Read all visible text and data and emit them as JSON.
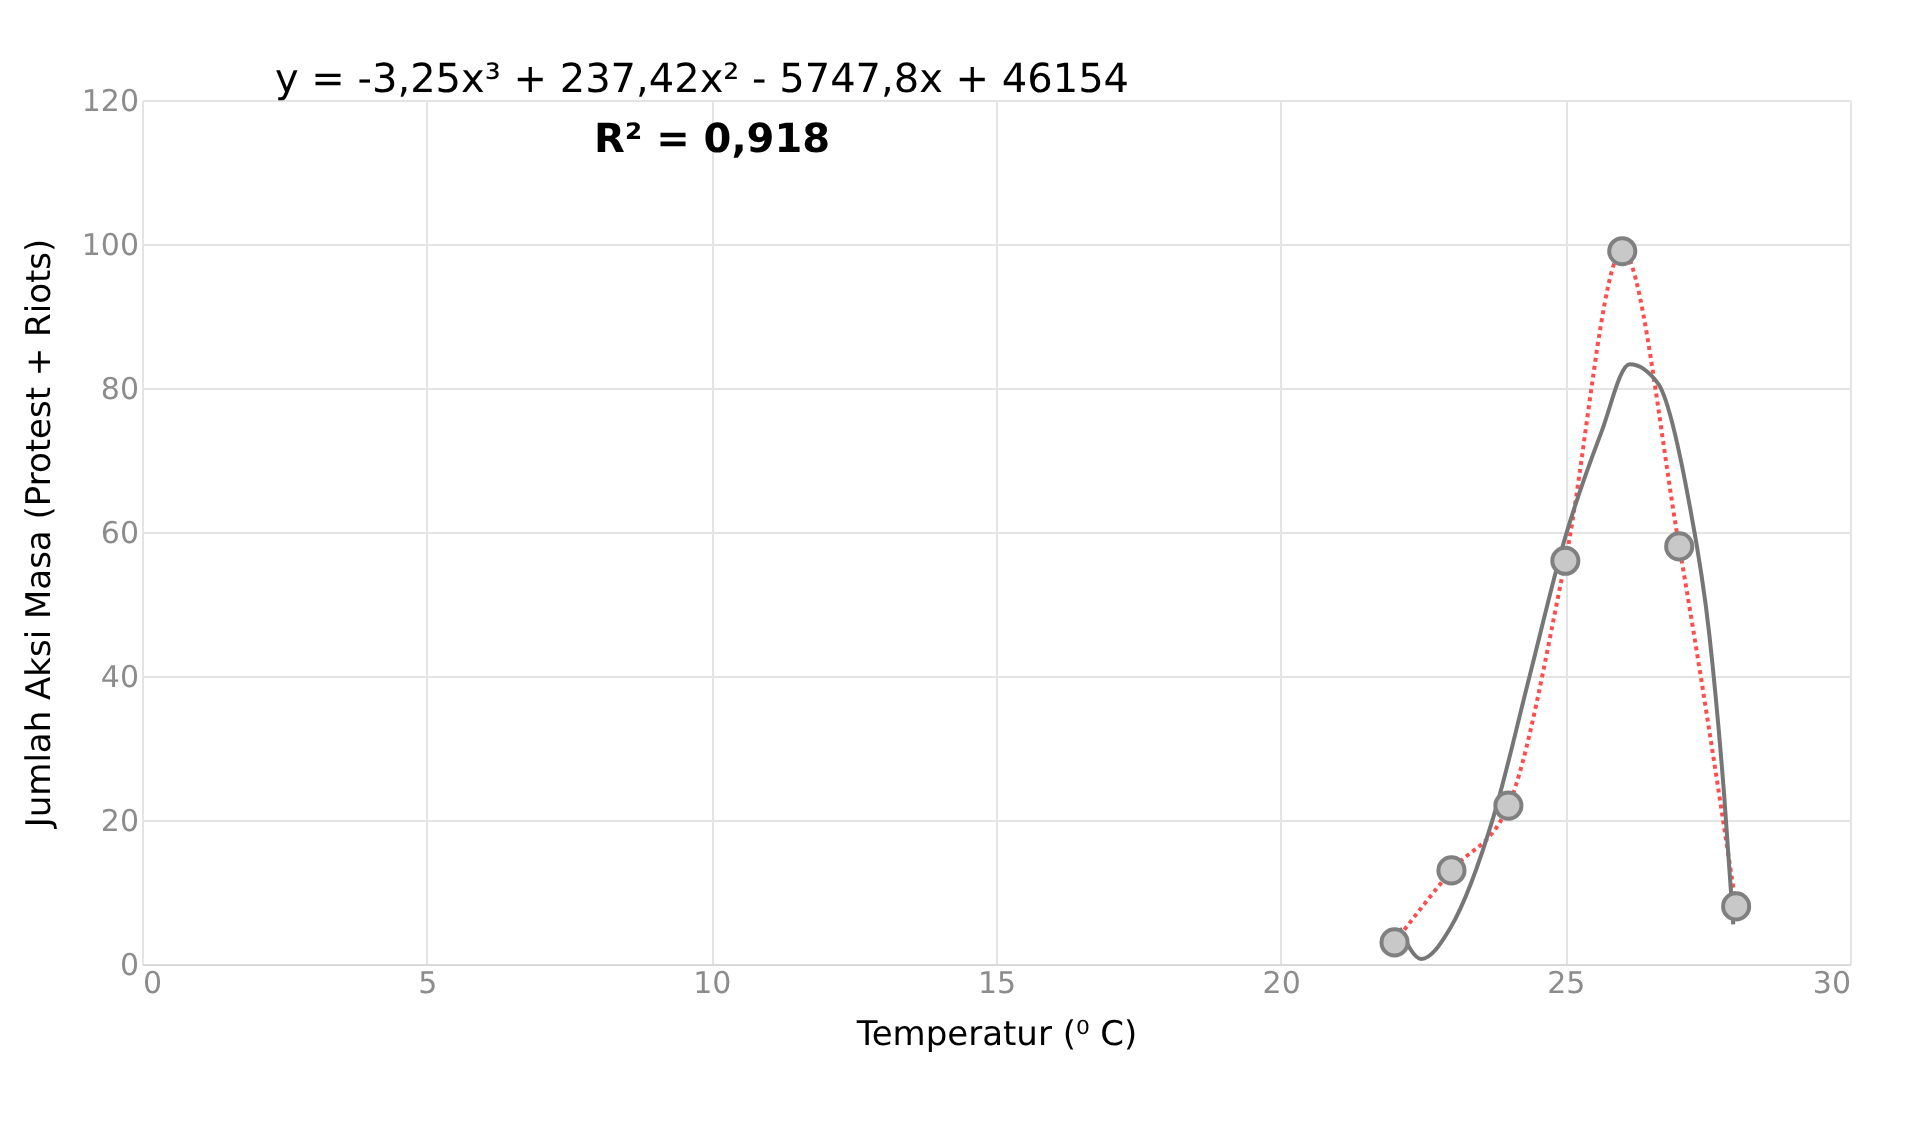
{
  "chart_data": {
    "type": "scatter",
    "xlabel": "Temperatur (⁰ C)",
    "ylabel": "Jumlah Aksi Masa (Protest + Riots)",
    "xlim": [
      0,
      30
    ],
    "xticks": [
      0,
      5,
      10,
      15,
      20,
      25,
      30
    ],
    "ylim": [
      0,
      120
    ],
    "yticks": [
      0,
      20,
      40,
      60,
      80,
      100,
      120
    ],
    "grid": true,
    "annotations": [
      "y = -3,25x³ + 237,42x² - 5747,8x + 46154",
      "R² = 0,918"
    ],
    "series": [
      {
        "type": "line",
        "color": "#ff4d4d",
        "line_style": "dotted",
        "marker": "none",
        "x": [
          22,
          23,
          24,
          25,
          26,
          27,
          28
        ],
        "values": [
          3,
          13,
          22,
          56,
          99,
          58,
          8
        ]
      },
      {
        "type": "line",
        "color": "#767676",
        "line_style": "solid",
        "marker": "none",
        "x": [
          22.09,
          22.47,
          22.98,
          23.74,
          24.37,
          25.0,
          25.63,
          26.13,
          26.63,
          27.15,
          27.53,
          27.79,
          27.95
        ],
        "values": [
          5.0,
          0.7,
          5,
          20.5,
          39.9,
          59.3,
          73.8,
          83.3,
          80.6,
          65.1,
          45.7,
          23.4,
          5.5
        ]
      },
      {
        "color": "#c8c8c8",
        "marker": "circle",
        "x": [
          22,
          23,
          24,
          25,
          26,
          27,
          28
        ],
        "values": [
          3,
          13,
          22,
          56,
          99,
          58,
          8
        ]
      }
    ]
  }
}
